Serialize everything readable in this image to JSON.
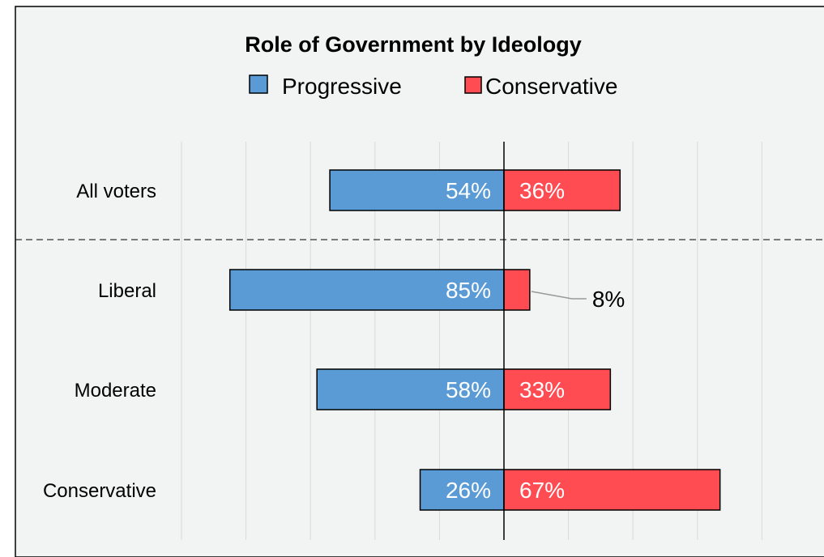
{
  "chart_data": {
    "type": "bar",
    "orientation": "horizontal-diverging",
    "title": "Role of Government by Ideology",
    "categories": [
      "All voters",
      "Liberal",
      "Moderate",
      "Conservative"
    ],
    "series": [
      {
        "name": "Progressive",
        "values": [
          54,
          85,
          58,
          26
        ],
        "labels": [
          "54%",
          "85%",
          "58%",
          "26%"
        ],
        "color": "#5b9bd5"
      },
      {
        "name": "Conservative",
        "values": [
          36,
          8,
          33,
          67
        ],
        "labels": [
          "36%",
          "8%",
          "33%",
          "67%"
        ],
        "color": "#ff4b52"
      }
    ],
    "xlim": [
      -100,
      90
    ],
    "gridlines": true,
    "separator_after_category": "All voters",
    "legend_placement": "top-center",
    "xlabel": "",
    "ylabel": ""
  },
  "colors": {
    "background": "#f2f4f4",
    "progressive": "#5b9bd5",
    "conservative": "#ff4b52",
    "grid": "#d9d9d9",
    "label_on_bar": "#ffffff",
    "label_outside": "#000000"
  }
}
